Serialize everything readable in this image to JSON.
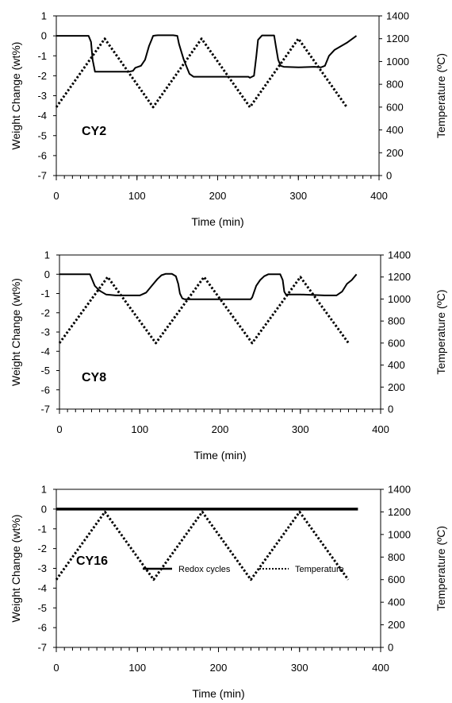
{
  "chart_data": [
    {
      "type": "line",
      "panel_label": "CY2",
      "xlabel": "Time (min)",
      "ylabel_left": "Weight Change (wt%)",
      "ylabel_right": "Temperature (ºC)",
      "xlim": [
        0,
        400
      ],
      "ylim_left": [
        -7,
        1
      ],
      "ylim_right": [
        0,
        1400
      ],
      "x_ticks": [
        0,
        100,
        200,
        300,
        400
      ],
      "y_ticks_left": [
        1,
        0,
        -1,
        -2,
        -3,
        -4,
        -5,
        -6,
        -7
      ],
      "y_ticks_right": [
        1400,
        1200,
        1000,
        800,
        600,
        400,
        200,
        0
      ],
      "grid": false,
      "legend": null,
      "series": [
        {
          "axis": "left",
          "style": "solid",
          "x": [
            0,
            40,
            43,
            45,
            48,
            90,
            95,
            98,
            105,
            110,
            115,
            118,
            120,
            123,
            126,
            130,
            145,
            150,
            152,
            155,
            158,
            162,
            165,
            170,
            180,
            200,
            230,
            238,
            240,
            245,
            248,
            250,
            255,
            258,
            262,
            265,
            270,
            272,
            275,
            278,
            282,
            300,
            320,
            328,
            333,
            338,
            345,
            360,
            372
          ],
          "y": [
            0,
            0,
            -0.3,
            -1.2,
            -1.8,
            -1.8,
            -1.75,
            -1.6,
            -1.5,
            -1.2,
            -0.5,
            -0.2,
            0,
            0.02,
            0.03,
            0.03,
            0.03,
            0,
            -0.4,
            -0.8,
            -1.2,
            -1.6,
            -1.9,
            -2.05,
            -2.05,
            -2.05,
            -2.05,
            -2.05,
            -2.1,
            -2.0,
            -1.0,
            -0.2,
            0.02,
            0.02,
            0.02,
            0.02,
            0.02,
            -0.5,
            -1.2,
            -1.5,
            -1.55,
            -1.58,
            -1.55,
            -1.58,
            -1.5,
            -1.0,
            -0.7,
            -0.35,
            0
          ]
        },
        {
          "axis": "right",
          "style": "dotted",
          "x": [
            0,
            60,
            120,
            180,
            240,
            300,
            360
          ],
          "y": [
            600,
            1200,
            600,
            1200,
            600,
            1200,
            600
          ]
        }
      ]
    },
    {
      "type": "line",
      "panel_label": "CY8",
      "xlabel": "Time (min)",
      "ylabel_left": "Weight Change (wt%)",
      "ylabel_right": "Temperature (ºC)",
      "xlim": [
        0,
        400
      ],
      "ylim_left": [
        -7,
        1
      ],
      "ylim_right": [
        0,
        1400
      ],
      "x_ticks": [
        0,
        100,
        200,
        300,
        400
      ],
      "y_ticks_left": [
        1,
        0,
        -1,
        -2,
        -3,
        -4,
        -5,
        -6,
        -7
      ],
      "y_ticks_right": [
        1400,
        1200,
        1000,
        800,
        600,
        400,
        200,
        0
      ],
      "grid": false,
      "legend": null,
      "series": [
        {
          "axis": "left",
          "style": "solid",
          "x": [
            0,
            38,
            41,
            44,
            50,
            58,
            70,
            100,
            108,
            115,
            122,
            127,
            132,
            140,
            145,
            148,
            150,
            153,
            156,
            160,
            190,
            220,
            238,
            240,
            245,
            250,
            255,
            260,
            270,
            275,
            278,
            280,
            282,
            285,
            300,
            330,
            345,
            352,
            358,
            364,
            370
          ],
          "y": [
            0,
            0,
            -0.3,
            -0.6,
            -0.85,
            -1.05,
            -1.1,
            -1.1,
            -0.95,
            -0.6,
            -0.25,
            -0.05,
            0.02,
            0.02,
            -0.1,
            -0.5,
            -1.0,
            -1.25,
            -1.3,
            -1.3,
            -1.3,
            -1.3,
            -1.3,
            -1.2,
            -0.6,
            -0.3,
            -0.1,
            0,
            0,
            0,
            -0.3,
            -0.9,
            -1.05,
            -1.05,
            -1.05,
            -1.1,
            -1.1,
            -0.9,
            -0.5,
            -0.3,
            0
          ]
        },
        {
          "axis": "right",
          "style": "dotted",
          "x": [
            0,
            60,
            120,
            180,
            240,
            300,
            360
          ],
          "y": [
            600,
            1200,
            600,
            1200,
            600,
            1200,
            600
          ]
        }
      ]
    },
    {
      "type": "line",
      "panel_label": "CY16",
      "xlabel": "Time (min)",
      "ylabel_left": "Weight Change (wt%)",
      "ylabel_right": "Temperature (ºC)",
      "xlim": [
        0,
        400
      ],
      "ylim_left": [
        -7,
        1
      ],
      "ylim_right": [
        0,
        1400
      ],
      "x_ticks": [
        0,
        100,
        200,
        300,
        400
      ],
      "y_ticks_left": [
        1,
        0,
        -1,
        -2,
        -3,
        -4,
        -5,
        -6,
        -7
      ],
      "y_ticks_right": [
        1400,
        1200,
        1000,
        800,
        600,
        400,
        200,
        0
      ],
      "grid": false,
      "legend": {
        "placement": "bottom-right",
        "entries": [
          {
            "label": "Redox cycles",
            "style": "solid"
          },
          {
            "label": "Temperature",
            "style": "dotted"
          }
        ]
      },
      "series": [
        {
          "name": "Redox cycles",
          "axis": "left",
          "style": "solid",
          "x": [
            0,
            372
          ],
          "y": [
            0,
            0
          ]
        },
        {
          "name": "Temperature",
          "axis": "right",
          "style": "dotted",
          "x": [
            0,
            60,
            120,
            180,
            240,
            300,
            360
          ],
          "y": [
            600,
            1200,
            600,
            1200,
            600,
            1200,
            600
          ]
        }
      ]
    }
  ]
}
